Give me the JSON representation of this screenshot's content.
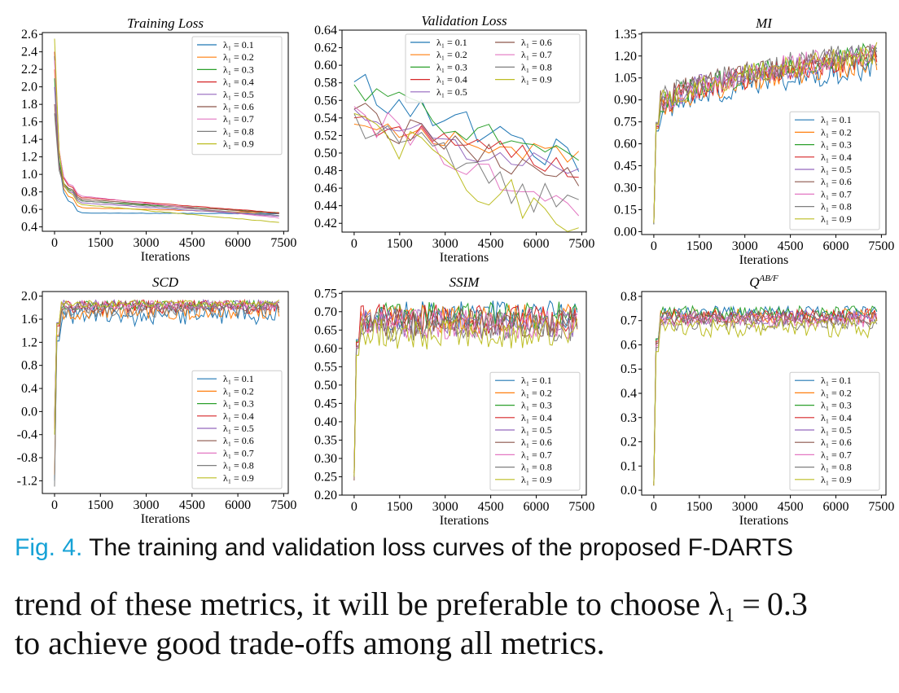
{
  "caption": {
    "label": "Fig. 4.",
    "text": "The training and validation loss curves of the proposed F-DARTS"
  },
  "body_text": {
    "line1": "trend of these metrics, it will be preferable to choose λ₁ = 0.3",
    "line2": "to achieve good trade-offs among all metrics."
  },
  "colors": [
    "#1f77b4",
    "#ff7f0e",
    "#2ca02c",
    "#d62728",
    "#9467bd",
    "#8c564b",
    "#e377c2",
    "#7f7f7f",
    "#bcbd22"
  ],
  "chart_data": [
    {
      "type": "line",
      "title": "Training Loss",
      "xlabel": "Iterations",
      "ylabel": "",
      "xlim": [
        -400,
        7650
      ],
      "ylim": [
        0.35,
        2.62
      ],
      "xticks": [
        "0",
        "1500",
        "3000",
        "4500",
        "6000",
        "7500"
      ],
      "yticks": [
        "0.4",
        "0.6",
        "0.8",
        "1.0",
        "1.2",
        "1.4",
        "1.6",
        "1.8",
        "2.0",
        "2.2",
        "2.4",
        "2.6"
      ],
      "legend": "top-right",
      "legend_cols": 1,
      "series": [
        {
          "name": "λ₁ = 0.1",
          "profile": "decay",
          "start": 2.35,
          "knee": 0.66,
          "end": 0.55,
          "noise": 0.003
        },
        {
          "name": "λ₁ = 0.2",
          "profile": "decay",
          "start": 2.2,
          "knee": 0.72,
          "end": 0.56,
          "noise": 0.003
        },
        {
          "name": "λ₁ = 0.3",
          "profile": "decay",
          "start": 2.1,
          "knee": 0.8,
          "end": 0.56,
          "noise": 0.003
        },
        {
          "name": "λ₁ = 0.4",
          "profile": "decay",
          "start": 2.4,
          "knee": 0.84,
          "end": 0.56,
          "noise": 0.003
        },
        {
          "name": "λ₁ = 0.5",
          "profile": "decay",
          "start": 2.0,
          "knee": 0.78,
          "end": 0.52,
          "noise": 0.003
        },
        {
          "name": "λ₁ = 0.6",
          "profile": "decay",
          "start": 1.8,
          "knee": 0.82,
          "end": 0.55,
          "noise": 0.003
        },
        {
          "name": "λ₁ = 0.7",
          "profile": "decay",
          "start": 2.3,
          "knee": 0.86,
          "end": 0.5,
          "noise": 0.003
        },
        {
          "name": "λ₁ = 0.8",
          "profile": "decay",
          "start": 1.7,
          "knee": 0.8,
          "end": 0.53,
          "noise": 0.003
        },
        {
          "name": "λ₁ = 0.9",
          "profile": "decay",
          "start": 2.55,
          "knee": 0.76,
          "end": 0.45,
          "noise": 0.003
        }
      ]
    },
    {
      "type": "line",
      "title": "Validation Loss",
      "xlabel": "Iterations",
      "ylabel": "",
      "xlim": [
        -400,
        7650
      ],
      "ylim": [
        0.41,
        0.64
      ],
      "xticks": [
        "0",
        "1500",
        "3000",
        "4500",
        "6000",
        "7500"
      ],
      "yticks": [
        "0.42",
        "0.44",
        "0.46",
        "0.48",
        "0.50",
        "0.52",
        "0.54",
        "0.56",
        "0.58",
        "0.60",
        "0.62",
        "0.64"
      ],
      "legend": "top-right",
      "legend_cols": 2,
      "series": [
        {
          "name": "λ₁ = 0.1",
          "profile": "validation",
          "start": 0.581,
          "end": 0.492,
          "noise": 0.018
        },
        {
          "name": "λ₁ = 0.2",
          "profile": "validation",
          "start": 0.533,
          "end": 0.495,
          "noise": 0.012
        },
        {
          "name": "λ₁ = 0.3",
          "profile": "validation",
          "start": 0.578,
          "end": 0.493,
          "noise": 0.015
        },
        {
          "name": "λ₁ = 0.4",
          "profile": "validation",
          "start": 0.54,
          "end": 0.484,
          "noise": 0.015
        },
        {
          "name": "λ₁ = 0.5",
          "profile": "validation",
          "start": 0.55,
          "end": 0.474,
          "noise": 0.015
        },
        {
          "name": "λ₁ = 0.6",
          "profile": "validation",
          "start": 0.55,
          "end": 0.465,
          "noise": 0.018
        },
        {
          "name": "λ₁ = 0.7",
          "profile": "validation",
          "start": 0.553,
          "end": 0.445,
          "noise": 0.02
        },
        {
          "name": "λ₁ = 0.8",
          "profile": "validation",
          "start": 0.545,
          "end": 0.436,
          "noise": 0.022
        },
        {
          "name": "λ₁ = 0.9",
          "profile": "validation",
          "start": 0.545,
          "end": 0.419,
          "noise": 0.022
        }
      ]
    },
    {
      "type": "line",
      "title": "MI",
      "xlabel": "Iterations",
      "ylabel": "",
      "xlim": [
        -400,
        7650
      ],
      "ylim": [
        -0.02,
        1.36
      ],
      "xticks": [
        "0",
        "1500",
        "3000",
        "4500",
        "6000",
        "7500"
      ],
      "yticks": [
        "0.00",
        "0.15",
        "0.30",
        "0.45",
        "0.60",
        "0.75",
        "0.90",
        "1.05",
        "1.20",
        "1.35"
      ],
      "legend": "lower-right",
      "legend_cols": 1,
      "series": [
        {
          "name": "λ₁ = 0.1",
          "profile": "rise",
          "start": 0.05,
          "plateau": 0.8,
          "end": 1.12,
          "noise": 0.04
        },
        {
          "name": "λ₁ = 0.2",
          "profile": "rise",
          "start": 0.06,
          "plateau": 0.82,
          "end": 1.16,
          "noise": 0.04
        },
        {
          "name": "λ₁ = 0.3",
          "profile": "rise",
          "start": 0.05,
          "plateau": 0.84,
          "end": 1.22,
          "noise": 0.04
        },
        {
          "name": "λ₁ = 0.4",
          "profile": "rise",
          "start": 0.07,
          "plateau": 0.83,
          "end": 1.2,
          "noise": 0.04
        },
        {
          "name": "λ₁ = 0.5",
          "profile": "rise",
          "start": 0.06,
          "plateau": 0.85,
          "end": 1.21,
          "noise": 0.04
        },
        {
          "name": "λ₁ = 0.6",
          "profile": "rise",
          "start": 0.05,
          "plateau": 0.86,
          "end": 1.22,
          "noise": 0.04
        },
        {
          "name": "λ₁ = 0.7",
          "profile": "rise",
          "start": 0.06,
          "plateau": 0.84,
          "end": 1.23,
          "noise": 0.04
        },
        {
          "name": "λ₁ = 0.8",
          "profile": "rise",
          "start": 0.05,
          "plateau": 0.87,
          "end": 1.24,
          "noise": 0.04
        },
        {
          "name": "λ₁ = 0.9",
          "profile": "rise",
          "start": 0.06,
          "plateau": 0.85,
          "end": 1.22,
          "noise": 0.04
        }
      ]
    },
    {
      "type": "line",
      "title": "SCD",
      "xlabel": "Iterations",
      "ylabel": "",
      "xlim": [
        -400,
        7650
      ],
      "ylim": [
        -1.42,
        2.08
      ],
      "xticks": [
        "0",
        "1500",
        "3000",
        "4500",
        "6000",
        "7500"
      ],
      "yticks": [
        "-1.2",
        "-0.8",
        "-0.4",
        "0.0",
        "0.4",
        "0.8",
        "1.2",
        "1.6",
        "2.0"
      ],
      "legend": "lower-right",
      "legend_cols": 1,
      "series": [
        {
          "name": "λ₁ = 0.1",
          "profile": "rise",
          "start": -1.2,
          "plateau": 1.65,
          "end": 1.68,
          "noise": 0.09
        },
        {
          "name": "λ₁ = 0.2",
          "profile": "rise",
          "start": -1.1,
          "plateau": 1.75,
          "end": 1.76,
          "noise": 0.08
        },
        {
          "name": "λ₁ = 0.3",
          "profile": "rise",
          "start": -0.2,
          "plateau": 1.84,
          "end": 1.85,
          "noise": 0.04
        },
        {
          "name": "λ₁ = 0.4",
          "profile": "rise",
          "start": -0.3,
          "plateau": 1.8,
          "end": 1.82,
          "noise": 0.06
        },
        {
          "name": "λ₁ = 0.5",
          "profile": "rise",
          "start": -0.1,
          "plateau": 1.83,
          "end": 1.84,
          "noise": 0.05
        },
        {
          "name": "λ₁ = 0.6",
          "profile": "rise",
          "start": -0.2,
          "plateau": 1.82,
          "end": 1.83,
          "noise": 0.05
        },
        {
          "name": "λ₁ = 0.7",
          "profile": "rise",
          "start": -0.3,
          "plateau": 1.84,
          "end": 1.85,
          "noise": 0.04
        },
        {
          "name": "λ₁ = 0.8",
          "profile": "rise",
          "start": -1.3,
          "plateau": 1.76,
          "end": 1.78,
          "noise": 0.07
        },
        {
          "name": "λ₁ = 0.9",
          "profile": "rise",
          "start": -0.4,
          "plateau": 1.86,
          "end": 1.88,
          "noise": 0.03
        }
      ]
    },
    {
      "type": "line",
      "title": "SSIM",
      "xlabel": "Iterations",
      "ylabel": "",
      "xlim": [
        -400,
        7650
      ],
      "ylim": [
        0.2,
        0.755
      ],
      "xticks": [
        "0",
        "1500",
        "3000",
        "4500",
        "6000",
        "7500"
      ],
      "yticks": [
        "0.20",
        "0.25",
        "0.30",
        "0.35",
        "0.40",
        "0.45",
        "0.50",
        "0.55",
        "0.60",
        "0.65",
        "0.70",
        "0.75"
      ],
      "legend": "lower-right",
      "legend_cols": 1,
      "series": [
        {
          "name": "λ₁ = 0.1",
          "profile": "rise",
          "start": 0.25,
          "plateau": 0.69,
          "end": 0.69,
          "noise": 0.02
        },
        {
          "name": "λ₁ = 0.2",
          "profile": "rise",
          "start": 0.26,
          "plateau": 0.68,
          "end": 0.68,
          "noise": 0.02
        },
        {
          "name": "λ₁ = 0.3",
          "profile": "rise",
          "start": 0.25,
          "plateau": 0.685,
          "end": 0.69,
          "noise": 0.02
        },
        {
          "name": "λ₁ = 0.4",
          "profile": "rise",
          "start": 0.26,
          "plateau": 0.68,
          "end": 0.68,
          "noise": 0.02
        },
        {
          "name": "λ₁ = 0.5",
          "profile": "rise",
          "start": 0.25,
          "plateau": 0.67,
          "end": 0.67,
          "noise": 0.02
        },
        {
          "name": "λ₁ = 0.6",
          "profile": "rise",
          "start": 0.24,
          "plateau": 0.67,
          "end": 0.67,
          "noise": 0.02
        },
        {
          "name": "λ₁ = 0.7",
          "profile": "rise",
          "start": 0.25,
          "plateau": 0.665,
          "end": 0.665,
          "noise": 0.02
        },
        {
          "name": "λ₁ = 0.8",
          "profile": "rise",
          "start": 0.26,
          "plateau": 0.66,
          "end": 0.66,
          "noise": 0.02
        },
        {
          "name": "λ₁ = 0.9",
          "profile": "rise",
          "start": 0.25,
          "plateau": 0.64,
          "end": 0.64,
          "noise": 0.022
        }
      ]
    },
    {
      "type": "line",
      "title": "Q^AB/F",
      "xlabel": "Iterations",
      "ylabel": "",
      "xlim": [
        -400,
        7650
      ],
      "ylim": [
        -0.02,
        0.82
      ],
      "xticks": [
        "0",
        "1500",
        "3000",
        "4500",
        "6000",
        "7500"
      ],
      "yticks": [
        "0.0",
        "0.1",
        "0.2",
        "0.3",
        "0.4",
        "0.5",
        "0.6",
        "0.7",
        "0.8"
      ],
      "legend": "lower-right",
      "legend_cols": 1,
      "series": [
        {
          "name": "λ₁ = 0.1",
          "profile": "rise",
          "start": 0.02,
          "plateau": 0.73,
          "end": 0.73,
          "noise": 0.015
        },
        {
          "name": "λ₁ = 0.2",
          "profile": "rise",
          "start": 0.02,
          "plateau": 0.72,
          "end": 0.72,
          "noise": 0.015
        },
        {
          "name": "λ₁ = 0.3",
          "profile": "rise",
          "start": 0.03,
          "plateau": 0.73,
          "end": 0.73,
          "noise": 0.015
        },
        {
          "name": "λ₁ = 0.4",
          "profile": "rise",
          "start": 0.02,
          "plateau": 0.72,
          "end": 0.72,
          "noise": 0.015
        },
        {
          "name": "λ₁ = 0.5",
          "profile": "rise",
          "start": 0.03,
          "plateau": 0.71,
          "end": 0.71,
          "noise": 0.015
        },
        {
          "name": "λ₁ = 0.6",
          "profile": "rise",
          "start": 0.02,
          "plateau": 0.71,
          "end": 0.71,
          "noise": 0.015
        },
        {
          "name": "λ₁ = 0.7",
          "profile": "rise",
          "start": 0.02,
          "plateau": 0.7,
          "end": 0.7,
          "noise": 0.015
        },
        {
          "name": "λ₁ = 0.8",
          "profile": "rise",
          "start": 0.02,
          "plateau": 0.69,
          "end": 0.69,
          "noise": 0.015
        },
        {
          "name": "λ₁ = 0.9",
          "profile": "rise",
          "start": 0.02,
          "plateau": 0.67,
          "end": 0.67,
          "noise": 0.02
        }
      ]
    }
  ]
}
